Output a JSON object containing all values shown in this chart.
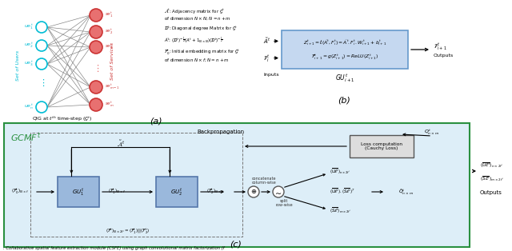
{
  "bg_color": "#ffffff",
  "caption": ": Collaborative spatial feature extraction module (CSFE) using graph convolutional matrix factorization (f",
  "panel_a": {
    "user_color": "#00bcd4",
    "service_color": "#e87070",
    "service_fill": "#e87070",
    "edge_color": "#555555"
  },
  "panel_b": {
    "box_fc": "#c5d8f0",
    "box_ec": "#6699cc",
    "formula1": "$Z_{i+1}^t = \\ell(\\tilde{A}^t,F_i^t) = \\tilde{A}^t.F_i^t.W_{i+1}^t + b_{i+1}^t$",
    "formula2": "$\\mathcal{F}_{i+1}^t = g(Z_{i+1}^t) = ReLU(Z_{i+1}^t)$"
  },
  "panel_c": {
    "bg_fc": "#ddeef8",
    "border_ec": "#2a9040",
    "title_color": "#2a9040",
    "gu_fc": "#9ab8dc",
    "gu_ec": "#5577aa",
    "loss_fc": "#dddddd",
    "loss_ec": "#555555"
  }
}
